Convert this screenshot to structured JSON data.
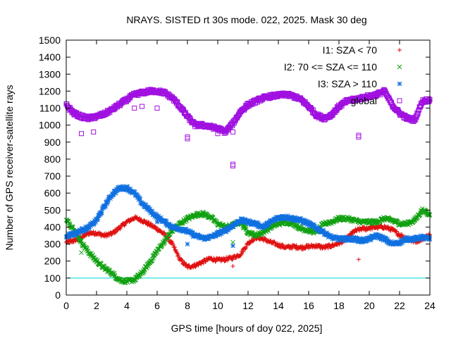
{
  "chart_data": {
    "type": "scatter",
    "title": "NRAYS. SISTED rt 30s mode. 022, 2025. Mask 30 deg",
    "xlabel": "GPS time [hours of doy 022, 2025]",
    "ylabel": "Number of GPS receiver-satellite rays",
    "xlim": [
      0,
      24
    ],
    "ylim": [
      0,
      1500
    ],
    "xticks": [
      "0",
      "2",
      "4",
      "6",
      "8",
      "10",
      "12",
      "14",
      "16",
      "18",
      "20",
      "22",
      "24"
    ],
    "yticks": [
      "0",
      "100",
      "200",
      "300",
      "400",
      "500",
      "600",
      "700",
      "800",
      "900",
      "1000",
      "1100",
      "1200",
      "1300",
      "1400",
      "1500"
    ],
    "reference_line": {
      "y": 100,
      "color": "#00d0d0"
    },
    "legend_position": "top-right",
    "series": [
      {
        "name": "I1: SZA < 70",
        "marker": "+",
        "color": "#e01010",
        "x": [
          0,
          0.5,
          1,
          1.5,
          2,
          2.5,
          3,
          3.5,
          4,
          4.5,
          5,
          5.5,
          6,
          6.5,
          7,
          7.5,
          8,
          8.5,
          9,
          9.5,
          10,
          10.5,
          11,
          11.5,
          12,
          12.5,
          13,
          13.5,
          14,
          14.5,
          15,
          15.5,
          16,
          16.5,
          17,
          17.5,
          18,
          18.5,
          19,
          19.5,
          20,
          20.5,
          21,
          21.5,
          22,
          22.5,
          23,
          23.5,
          24
        ],
        "y": [
          310,
          320,
          340,
          365,
          365,
          350,
          360,
          395,
          430,
          455,
          440,
          415,
          390,
          355,
          300,
          210,
          165,
          175,
          195,
          215,
          205,
          210,
          220,
          240,
          305,
          340,
          330,
          310,
          295,
          280,
          285,
          280,
          285,
          290,
          280,
          290,
          305,
          330,
          375,
          390,
          395,
          400,
          400,
          385,
          355,
          330,
          315,
          330,
          355
        ],
        "outliers": [
          [
            11,
            170
          ],
          [
            19.3,
            210
          ],
          [
            19.8,
            380
          ]
        ]
      },
      {
        "name": "I2: 70 <= SZA <= 110",
        "marker": "x",
        "color": "#10a010",
        "x": [
          0,
          0.5,
          1,
          1.5,
          2,
          2.5,
          3,
          3.5,
          4,
          4.5,
          5,
          5.5,
          6,
          6.5,
          7,
          7.5,
          8,
          8.5,
          9,
          9.5,
          10,
          10.5,
          11,
          11.5,
          12,
          12.5,
          13,
          13.5,
          14,
          14.5,
          15,
          15.5,
          16,
          16.5,
          17,
          17.5,
          18,
          18.5,
          19,
          19.5,
          20,
          20.5,
          21,
          21.5,
          22,
          22.5,
          23,
          23.5,
          24
        ],
        "y": [
          440,
          390,
          310,
          250,
          200,
          160,
          130,
          90,
          80,
          90,
          130,
          190,
          260,
          320,
          380,
          420,
          450,
          470,
          480,
          460,
          420,
          400,
          410,
          430,
          370,
          350,
          370,
          400,
          420,
          430,
          420,
          390,
          380,
          370,
          420,
          430,
          450,
          450,
          440,
          430,
          430,
          430,
          450,
          440,
          420,
          420,
          440,
          500,
          470
        ],
        "outliers": [
          [
            1,
            250
          ],
          [
            11,
            310
          ],
          [
            19.3,
            430
          ]
        ]
      },
      {
        "name": "I3: SZA > 110",
        "marker": "*",
        "color": "#1070e0",
        "x": [
          0,
          0.5,
          1,
          1.5,
          2,
          2.5,
          3,
          3.5,
          4,
          4.5,
          5,
          5.5,
          6,
          6.5,
          7,
          7.5,
          8,
          8.5,
          9,
          9.5,
          10,
          10.5,
          11,
          11.5,
          12,
          12.5,
          13,
          13.5,
          14,
          14.5,
          15,
          15.5,
          16,
          16.5,
          17,
          17.5,
          18,
          18.5,
          19,
          19.5,
          20,
          20.5,
          21,
          21.5,
          22,
          22.5,
          23,
          23.5,
          24
        ],
        "y": [
          350,
          360,
          380,
          400,
          440,
          520,
          590,
          630,
          630,
          600,
          540,
          500,
          460,
          430,
          400,
          390,
          375,
          350,
          335,
          340,
          360,
          380,
          410,
          440,
          430,
          420,
          400,
          430,
          455,
          460,
          450,
          440,
          420,
          395,
          370,
          340,
          330,
          330,
          330,
          320,
          330,
          350,
          330,
          300,
          310,
          330,
          330,
          340,
          330
        ],
        "outliers": [
          [
            6,
            430
          ],
          [
            8,
            300
          ],
          [
            11,
            290
          ],
          [
            19.5,
            310
          ]
        ]
      },
      {
        "name": "global",
        "marker": "square",
        "color": "#a010e0",
        "x": [
          0,
          0.5,
          1,
          1.5,
          2,
          2.5,
          3,
          3.5,
          4,
          4.5,
          5,
          5.5,
          6,
          6.5,
          7,
          7.5,
          8,
          8.5,
          9,
          9.5,
          10,
          10.5,
          11,
          11.5,
          12,
          12.5,
          13,
          13.5,
          14,
          14.5,
          15,
          15.5,
          16,
          16.5,
          17,
          17.5,
          18,
          18.5,
          19,
          19.5,
          20,
          20.5,
          21,
          21.5,
          22,
          22.5,
          23,
          23.5,
          24
        ],
        "y": [
          1120,
          1070,
          1050,
          1040,
          1050,
          1065,
          1090,
          1120,
          1150,
          1180,
          1190,
          1200,
          1200,
          1190,
          1160,
          1110,
          1050,
          1000,
          1000,
          990,
          980,
          960,
          1010,
          1080,
          1120,
          1140,
          1160,
          1170,
          1175,
          1180,
          1170,
          1150,
          1110,
          1060,
          1040,
          1060,
          1110,
          1140,
          1150,
          1160,
          1170,
          1180,
          1200,
          1120,
          1070,
          1040,
          1030,
          1140,
          1150
        ],
        "outliers": [
          [
            1,
            950
          ],
          [
            1.8,
            960
          ],
          [
            8,
            930
          ],
          [
            8,
            920
          ],
          [
            10,
            950
          ],
          [
            11,
            960
          ],
          [
            11,
            770
          ],
          [
            11,
            760
          ],
          [
            19.3,
            940
          ],
          [
            19.3,
            930
          ],
          [
            4.5,
            1100
          ],
          [
            5,
            1110
          ],
          [
            6,
            1100
          ]
        ]
      }
    ]
  }
}
